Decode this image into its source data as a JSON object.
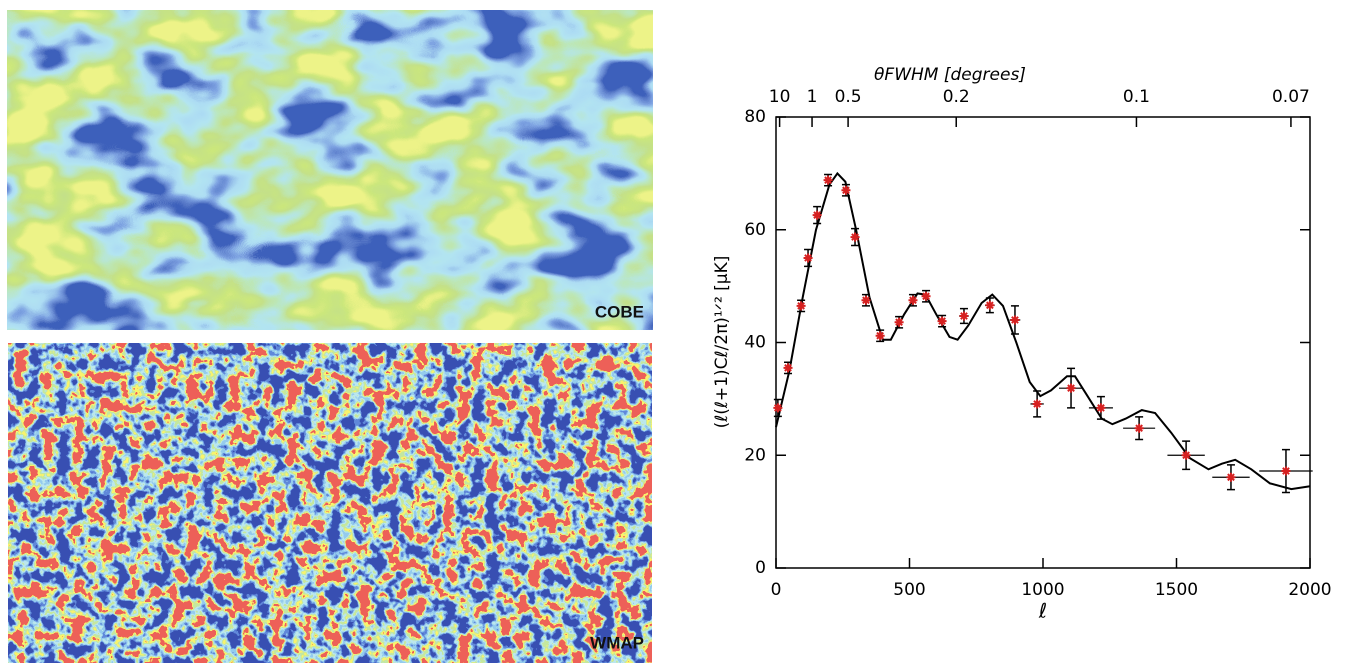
{
  "maps": [
    "COBE",
    "WMAP"
  ],
  "chart_data": {
    "type": "scatter",
    "x_label": "ℓ",
    "y_label": "(ℓ(ℓ+1)Cℓ/2π)¹ᐟ² [μK]",
    "x2_label": "θFWHM [degrees]",
    "xlim": [
      0,
      2000
    ],
    "ylim": [
      0,
      80
    ],
    "xticks": [
      0,
      500,
      1000,
      1500,
      2000
    ],
    "yticks": [
      0,
      20,
      40,
      60,
      80
    ],
    "x2ticks": [
      10,
      1,
      0.5,
      0.2,
      0.1,
      0.07
    ],
    "series": [
      {
        "type": "line",
        "color": "#000000",
        "x": [
          0,
          50,
          100,
          150,
          200,
          230,
          260,
          300,
          350,
          400,
          430,
          480,
          530,
          560,
          600,
          650,
          680,
          720,
          770,
          810,
          850,
          900,
          950,
          990,
          1030,
          1090,
          1120,
          1160,
          1220,
          1260,
          1310,
          1370,
          1420,
          1480,
          1550,
          1620,
          1670,
          1720,
          1780,
          1850,
          1930,
          2000
        ],
        "values": [
          25,
          35,
          48,
          60,
          68,
          70,
          68.5,
          60,
          48,
          40.5,
          40.5,
          45,
          48.7,
          48.5,
          45,
          41,
          40.5,
          43,
          47,
          48.5,
          46.5,
          40,
          33,
          30.5,
          31.5,
          34,
          34,
          31,
          26.5,
          25.5,
          26.5,
          28,
          27.5,
          24,
          19.5,
          17.5,
          18.5,
          19.2,
          17.5,
          15,
          14,
          14.5
        ]
      },
      {
        "type": "scatter",
        "color": "#d62020",
        "x": [
          7,
          45,
          94,
          120,
          154,
          195,
          262,
          296,
          337,
          390,
          461,
          513,
          562,
          622,
          704,
          801,
          895,
          978,
          1105,
          1217,
          1360,
          1536,
          1704,
          1910
        ],
        "values": [
          28.4,
          35.5,
          46.5,
          55.0,
          62.6,
          68.8,
          67.0,
          58.7,
          47.5,
          41.2,
          43.6,
          47.5,
          48.2,
          43.8,
          44.7,
          46.6,
          44.0,
          29.1,
          31.9,
          28.4,
          24.8,
          20.0,
          16.1,
          17.2
        ],
        "xerr": [
          3,
          6,
          8,
          8,
          10,
          12,
          12,
          12,
          12,
          12,
          14,
          14,
          14,
          16,
          18,
          18,
          20,
          25,
          45,
          45,
          60,
          70,
          70,
          100
        ],
        "yerr": [
          1.5,
          1,
          1,
          1.5,
          1.5,
          1,
          1,
          1.5,
          1,
          1,
          1,
          1,
          1,
          1,
          1.3,
          1.3,
          2.5,
          2.3,
          3.5,
          2,
          2,
          2.5,
          2.2,
          3.8
        ]
      }
    ]
  }
}
